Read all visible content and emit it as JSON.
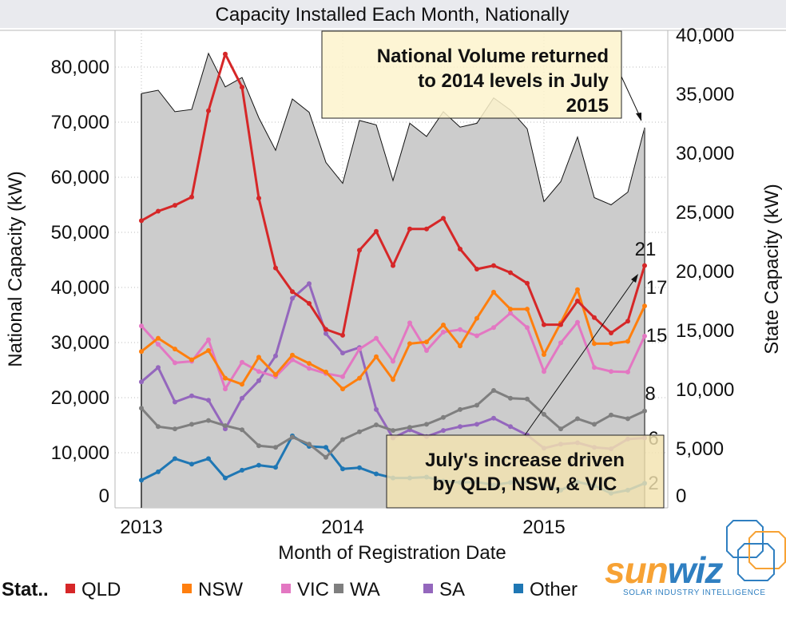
{
  "chart_data": {
    "type": "line",
    "title": "Capacity Installed Each Month, Nationally",
    "xlabel": "Month of Registration Date",
    "ylabel_left": "National Capacity (kW)",
    "ylabel_right": "State Capacity (kW)",
    "x_ticks": [
      "2013",
      "2014",
      "2015"
    ],
    "x_range": [
      "2013-01",
      "2015-07"
    ],
    "y_left_ticks": [
      "0",
      "10,000",
      "20,000",
      "30,000",
      "40,000",
      "50,000",
      "60,000",
      "70,000",
      "80,000"
    ],
    "y_left_tick_values": [
      0,
      10000,
      20000,
      30000,
      40000,
      50000,
      60000,
      70000,
      80000
    ],
    "y_right_ticks": [
      "0",
      "5,000",
      "10,000",
      "15,000",
      "20,000",
      "25,000",
      "30,000",
      "35,000",
      "40,000"
    ],
    "y_right_tick_values": [
      0,
      5000,
      10000,
      15000,
      20000,
      25000,
      30000,
      35000,
      40000
    ],
    "grid": true,
    "national": {
      "type": "area",
      "axis": "left",
      "color": "#cccccc",
      "values": [
        75200,
        75800,
        71900,
        72300,
        82500,
        76400,
        78100,
        70800,
        64900,
        74200,
        71800,
        62700,
        58900,
        70300,
        69500,
        59400,
        69800,
        67400,
        71900,
        69100,
        69800,
        74400,
        72200,
        68800,
        55600,
        59200,
        67300,
        56300,
        55000,
        57300,
        69000
      ]
    },
    "series": [
      {
        "name": "QLD",
        "color": "#d62728",
        "end_label": "21",
        "values": [
          24300,
          25100,
          25600,
          26300,
          33600,
          38400,
          35600,
          26200,
          20300,
          18300,
          17300,
          15100,
          14600,
          21800,
          23400,
          20500,
          23600,
          23600,
          24500,
          21900,
          20200,
          20500,
          19900,
          19000,
          15500,
          15500,
          17500,
          16100,
          14800,
          15800,
          20500
        ]
      },
      {
        "name": "NSW",
        "color": "#ff7f0e",
        "end_label": "17",
        "values": [
          13230,
          14350,
          13440,
          12530,
          13310,
          10970,
          10450,
          12740,
          11280,
          12920,
          12220,
          11490,
          10060,
          10970,
          12790,
          10850,
          13890,
          14040,
          15470,
          13700,
          16040,
          18250,
          16820,
          16820,
          12970,
          15650,
          18460,
          13890,
          13890,
          14090,
          17080
        ]
      },
      {
        "name": "VIC",
        "color": "#e377c2",
        "end_label": "15",
        "values": [
          15390,
          13830,
          12270,
          12400,
          14220,
          10060,
          12320,
          11540,
          11100,
          12530,
          11800,
          11370,
          11100,
          13440,
          14350,
          12400,
          15650,
          13310,
          14870,
          15080,
          14560,
          15260,
          16480,
          15260,
          11540,
          13960,
          15700,
          11880,
          11540,
          11490,
          14530
        ]
      },
      {
        "name": "WA",
        "color": "#7f7f7f",
        "end_label": "8",
        "values": [
          8430,
          6870,
          6680,
          7070,
          7390,
          6950,
          6610,
          5260,
          5120,
          5980,
          5390,
          4270,
          5780,
          6430,
          7020,
          6550,
          6810,
          7070,
          7650,
          8320,
          8680,
          9930,
          9280,
          9200,
          7910,
          6680,
          7540,
          7070,
          7850,
          7540,
          8190
        ]
      },
      {
        "name": "SA",
        "color": "#9467bd",
        "end_label": "6",
        "values": [
          10660,
          11880,
          8950,
          9470,
          9100,
          6680,
          9280,
          10760,
          12850,
          17730,
          18970,
          14740,
          13100,
          13570,
          8320,
          5910,
          6610,
          6030,
          6550,
          6870,
          7070,
          7590,
          6870,
          6160,
          5050,
          5390,
          5510,
          5120,
          4990,
          5820,
          5910
        ]
      },
      {
        "name": "Other",
        "color": "#1f77b4",
        "end_label": "2",
        "values": [
          2340,
          3050,
          4160,
          3700,
          4160,
          2530,
          3180,
          3610,
          3430,
          6090,
          5200,
          5120,
          3300,
          3390,
          2870,
          2530,
          2530,
          2600,
          2260,
          2140,
          2190,
          1930,
          2140,
          2140,
          1880,
          1490,
          2190,
          1880,
          1230,
          1490,
          2080
        ]
      }
    ],
    "annotations": [
      {
        "lines": [
          "National Volume returned",
          "to 2014 levels in July",
          "2015"
        ]
      },
      {
        "lines": [
          "July's increase driven",
          "by QLD, NSW, & VIC"
        ]
      }
    ],
    "legend": {
      "title": "Stat..",
      "placement": "bottom",
      "items": [
        "QLD",
        "NSW",
        "VIC",
        "WA",
        "SA",
        "Other"
      ]
    }
  },
  "logo": {
    "brand_a": "sun",
    "brand_b": "wiz",
    "tagline": "SOLAR INDUSTRY INTELLIGENCE",
    "color_a": "#f7a234",
    "color_b": "#2f7fc1"
  }
}
